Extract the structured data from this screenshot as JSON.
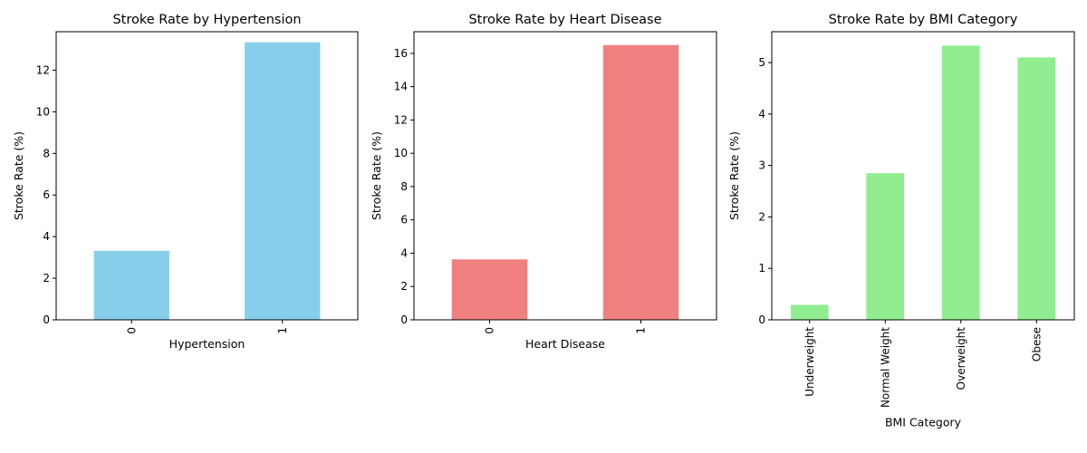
{
  "colors": {
    "hypertension": "#87ceeb",
    "heart_disease": "#f08080",
    "bmi": "#90ee90"
  },
  "chart_data": [
    {
      "type": "bar",
      "title": "Stroke Rate by Hypertension",
      "xlabel": "Hypertension",
      "ylabel": "Stroke Rate (%)",
      "categories": [
        "0",
        "1"
      ],
      "values": [
        3.32,
        13.34
      ],
      "ylim": [
        0,
        13.85
      ],
      "yticks": [
        0,
        2,
        4,
        6,
        8,
        10,
        12
      ],
      "color": "#87ceeb",
      "grid": false
    },
    {
      "type": "bar",
      "title": "Stroke Rate by Heart Disease",
      "xlabel": "Heart Disease",
      "ylabel": "Stroke Rate (%)",
      "categories": [
        "0",
        "1"
      ],
      "values": [
        3.63,
        16.5
      ],
      "ylim": [
        0,
        17.3
      ],
      "yticks": [
        0,
        2,
        4,
        6,
        8,
        10,
        12,
        14,
        16
      ],
      "color": "#f08080",
      "grid": false
    },
    {
      "type": "bar",
      "title": "Stroke Rate by BMI Category",
      "xlabel": "BMI Category",
      "ylabel": "Stroke Rate (%)",
      "categories": [
        "Underweight",
        "Normal Weight",
        "Overweight",
        "Obese"
      ],
      "values": [
        0.29,
        2.85,
        5.33,
        5.1
      ],
      "ylim": [
        0,
        5.6
      ],
      "yticks": [
        0,
        1,
        2,
        3,
        4,
        5
      ],
      "color": "#90ee90",
      "grid": false
    }
  ]
}
